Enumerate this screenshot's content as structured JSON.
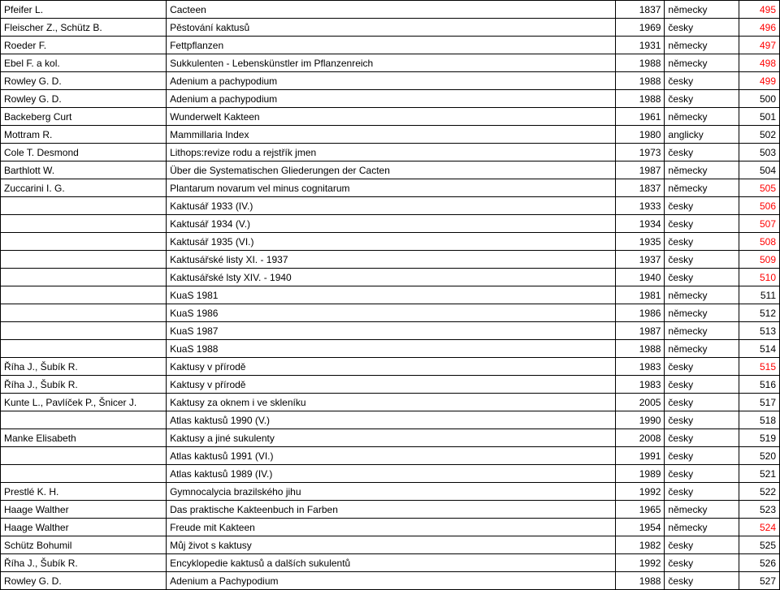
{
  "rows": [
    {
      "author": "Pfeifer L.",
      "title": "Cacteen",
      "year": "1837",
      "lang": "německy",
      "id": "495",
      "red": true
    },
    {
      "author": "Fleischer Z., Schütz B.",
      "title": "Pěstování kaktusů",
      "year": "1969",
      "lang": "česky",
      "id": "496",
      "red": true
    },
    {
      "author": "Roeder F.",
      "title": "Fettpflanzen",
      "year": "1931",
      "lang": "německy",
      "id": "497",
      "red": true
    },
    {
      "author": "Ebel F. a kol.",
      "title": "Sukkulenten - Lebenskünstler im Pflanzenreich",
      "year": "1988",
      "lang": "německy",
      "id": "498",
      "red": true
    },
    {
      "author": "Rowley G. D.",
      "title": "Adenium a pachypodium",
      "year": "1988",
      "lang": "česky",
      "id": "499",
      "red": true
    },
    {
      "author": "Rowley G. D.",
      "title": "Adenium a pachypodium",
      "year": "1988",
      "lang": "česky",
      "id": "500",
      "red": false
    },
    {
      "author": "Backeberg Curt",
      "title": "Wunderwelt Kakteen",
      "year": "1961",
      "lang": "německy",
      "id": "501",
      "red": false
    },
    {
      "author": "Mottram R.",
      "title": "Mammillaria Index",
      "year": "1980",
      "lang": "anglicky",
      "id": "502",
      "red": false
    },
    {
      "author": "Cole T. Desmond",
      "title": "Lithops:revize rodu a rejstřík jmen",
      "year": "1973",
      "lang": "česky",
      "id": "503",
      "red": false
    },
    {
      "author": "Barthlott W.",
      "title": "Über die Systematischen Gliederungen der Cacten",
      "year": "1987",
      "lang": "německy",
      "id": "504",
      "red": false
    },
    {
      "author": "Zuccarini I. G.",
      "title": "Plantarum novarum vel minus cognitarum",
      "year": "1837",
      "lang": "německy",
      "id": "505",
      "red": true
    },
    {
      "author": "",
      "title": "Kaktusář 1933 (IV.)",
      "year": "1933",
      "lang": "česky",
      "id": "506",
      "red": true
    },
    {
      "author": "",
      "title": "Kaktusář 1934 (V.)",
      "year": "1934",
      "lang": "česky",
      "id": "507",
      "red": true
    },
    {
      "author": "",
      "title": "Kaktusář 1935 (VI.)",
      "year": "1935",
      "lang": "česky",
      "id": "508",
      "red": true
    },
    {
      "author": "",
      "title": "Kaktusářské listy XI. - 1937",
      "year": "1937",
      "lang": "česky",
      "id": "509",
      "red": true
    },
    {
      "author": "",
      "title": "Kaktusářské lsty XIV. - 1940",
      "year": "1940",
      "lang": "česky",
      "id": "510",
      "red": true
    },
    {
      "author": "",
      "title": "KuaS 1981",
      "year": "1981",
      "lang": "německy",
      "id": "511",
      "red": false
    },
    {
      "author": "",
      "title": "KuaS 1986",
      "year": "1986",
      "lang": "německy",
      "id": "512",
      "red": false
    },
    {
      "author": "",
      "title": "KuaS 1987",
      "year": "1987",
      "lang": "německy",
      "id": "513",
      "red": false
    },
    {
      "author": "",
      "title": "KuaS 1988",
      "year": "1988",
      "lang": "německy",
      "id": "514",
      "red": false
    },
    {
      "author": "Říha J., Šubík R.",
      "title": "Kaktusy v přírodě",
      "year": "1983",
      "lang": "česky",
      "id": "515",
      "red": true
    },
    {
      "author": "Říha J., Šubík R.",
      "title": "Kaktusy v přírodě",
      "year": "1983",
      "lang": "česky",
      "id": "516",
      "red": false
    },
    {
      "author": "Kunte L., Pavlíček P., Šnicer J.",
      "title": "Kaktusy za oknem i ve skleníku",
      "year": "2005",
      "lang": "česky",
      "id": "517",
      "red": false
    },
    {
      "author": "",
      "title": "Atlas kaktusů 1990 (V.)",
      "year": "1990",
      "lang": "česky",
      "id": "518",
      "red": false
    },
    {
      "author": "Manke Elisabeth",
      "title": "Kaktusy a jiné sukulenty",
      "year": "2008",
      "lang": "česky",
      "id": "519",
      "red": false
    },
    {
      "author": "",
      "title": "Atlas kaktusů 1991 (VI.)",
      "year": "1991",
      "lang": "česky",
      "id": "520",
      "red": false
    },
    {
      "author": "",
      "title": "Atlas kaktusů 1989 (IV.)",
      "year": "1989",
      "lang": "česky",
      "id": "521",
      "red": false
    },
    {
      "author": "Prestlé K. H.",
      "title": "Gymnocalycia brazilského jihu",
      "year": "1992",
      "lang": "česky",
      "id": "522",
      "red": false
    },
    {
      "author": "Haage Walther",
      "title": "Das praktische Kakteenbuch in Farben",
      "year": "1965",
      "lang": "německy",
      "id": "523",
      "red": false
    },
    {
      "author": "Haage Walther",
      "title": "Freude mit Kakteen",
      "year": "1954",
      "lang": "německy",
      "id": "524",
      "red": true
    },
    {
      "author": "Schütz Bohumil",
      "title": "Můj život s kaktusy",
      "year": "1982",
      "lang": "česky",
      "id": "525",
      "red": false
    },
    {
      "author": "Říha J., Šubík R.",
      "title": "Encyklopedie kaktusů a dalších sukulentů",
      "year": "1992",
      "lang": "česky",
      "id": "526",
      "red": false
    },
    {
      "author": "Rowley G. D.",
      "title": "Adenium a Pachypodium",
      "year": "1988",
      "lang": "česky",
      "id": "527",
      "red": false
    }
  ]
}
